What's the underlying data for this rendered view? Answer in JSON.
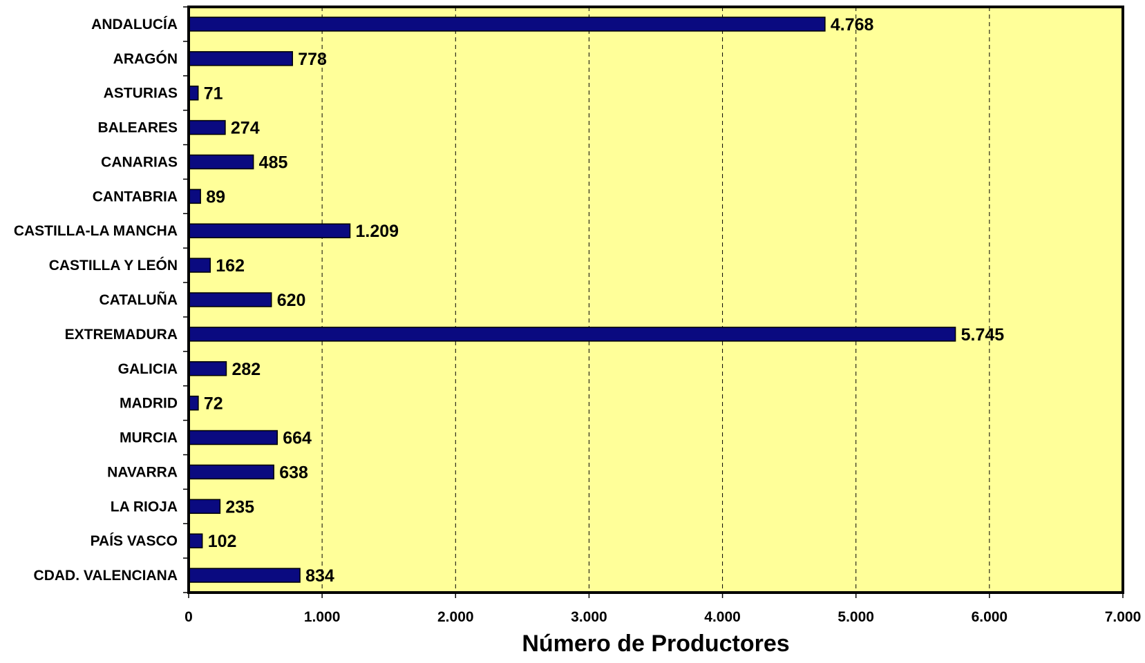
{
  "chart_data": {
    "type": "bar",
    "orientation": "horizontal",
    "categories": [
      "ANDALUCÍA",
      "ARAGÓN",
      "ASTURIAS",
      "BALEARES",
      "CANARIAS",
      "CANTABRIA",
      "CASTILLA-LA MANCHA",
      "CASTILLA Y LEÓN",
      "CATALUÑA",
      "EXTREMADURA",
      "GALICIA",
      "MADRID",
      "MURCIA",
      "NAVARRA",
      "LA RIOJA",
      "PAÍS VASCO",
      "CDAD. VALENCIANA"
    ],
    "values": [
      4768,
      778,
      71,
      274,
      485,
      89,
      1209,
      162,
      620,
      5745,
      282,
      72,
      664,
      638,
      235,
      102,
      834
    ],
    "value_labels": [
      "4.768",
      "778",
      "71",
      "274",
      "485",
      "89",
      "1.209",
      "162",
      "620",
      "5.745",
      "282",
      "72",
      "664",
      "638",
      "235",
      "102",
      "834"
    ],
    "xlim": [
      0,
      7000
    ],
    "xticks": [
      0,
      1000,
      2000,
      3000,
      4000,
      5000,
      6000,
      7000
    ],
    "xtick_labels": [
      "0",
      "1.000",
      "2.000",
      "3.000",
      "4.000",
      "5.000",
      "6.000",
      "7.000"
    ],
    "xlabel": "Número de Productores",
    "ylabel": "",
    "title": "",
    "grid": "vertical dashed",
    "colors": {
      "bar": "#0a0a80",
      "plot_background": "#ffff99",
      "frame": "#000000"
    }
  }
}
